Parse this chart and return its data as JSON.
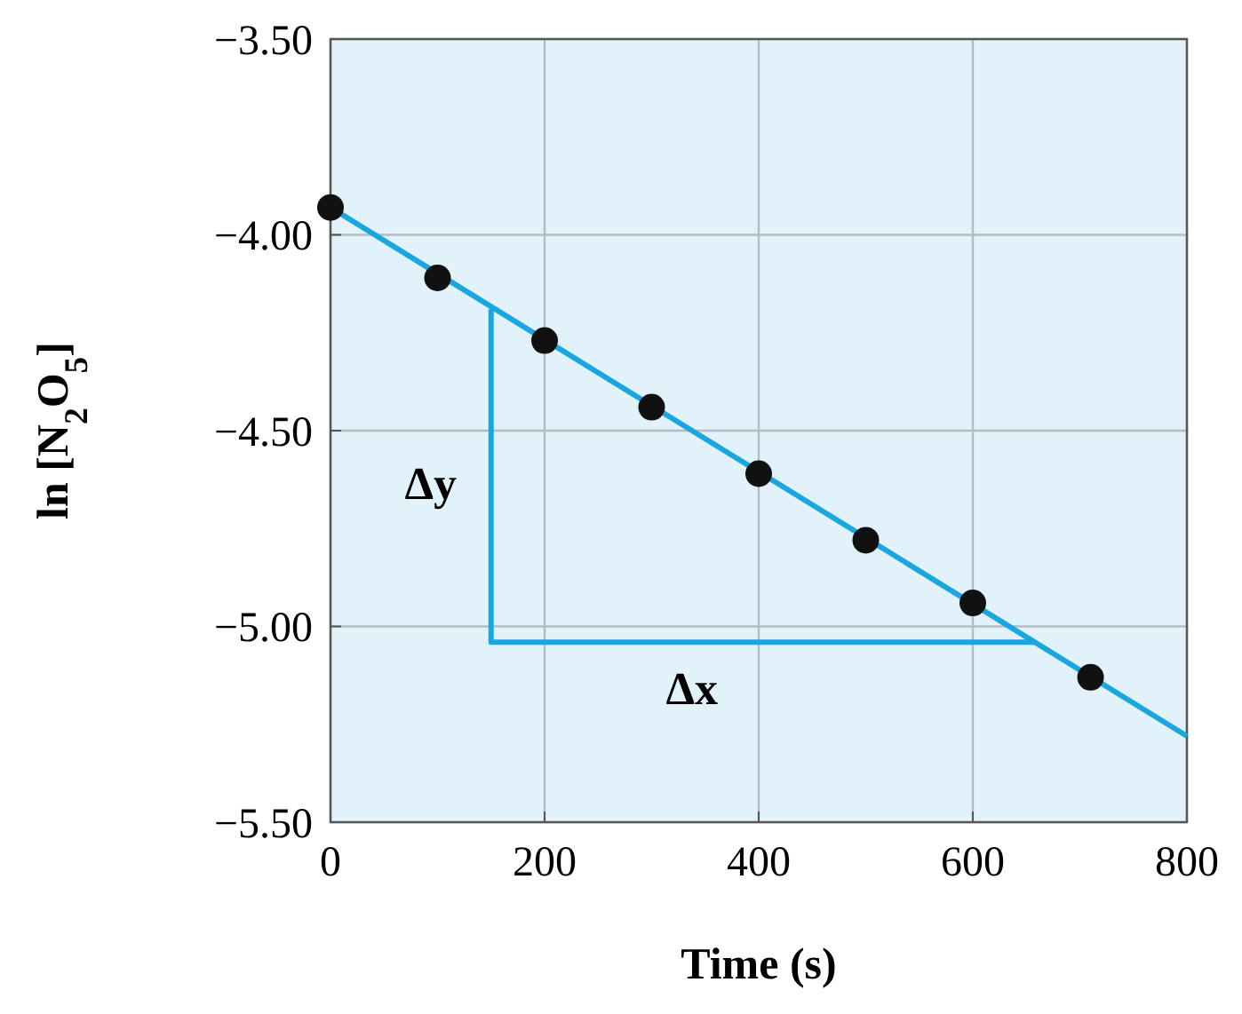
{
  "chart_data": {
    "type": "scatter",
    "xlabel": "Time (s)",
    "ylabel": "ln [N$_{2}$O$_{5}$]",
    "xlim": [
      0,
      800
    ],
    "ylim": [
      -5.5,
      -3.5
    ],
    "xticks": [
      0,
      200,
      400,
      600,
      800
    ],
    "yticks": [
      {
        "value": -5.5,
        "label": "−5.50"
      },
      {
        "value": -5.0,
        "label": "−5.00"
      },
      {
        "value": -4.5,
        "label": "−4.50"
      },
      {
        "value": -4.0,
        "label": "−4.00"
      },
      {
        "value": -3.5,
        "label": "−3.50"
      }
    ],
    "grid": true,
    "series": [
      {
        "type": "line",
        "color": "#1aa6df",
        "x": [
          0,
          800
        ],
        "values": [
          -3.93,
          -5.28
        ]
      },
      {
        "type": "line",
        "color": "#1aa6df",
        "x": [
          150,
          150,
          658
        ],
        "values": [
          -4.19,
          -5.04,
          -5.04
        ]
      },
      {
        "color": "#111111",
        "x": [
          0,
          100,
          200,
          300,
          400,
          500,
          600,
          710
        ],
        "values": [
          -3.93,
          -4.11,
          -4.27,
          -4.44,
          -4.61,
          -4.78,
          -4.94,
          -5.13
        ],
        "marker": "circle"
      }
    ],
    "annotations": [
      "Δy",
      "Δx"
    ]
  }
}
